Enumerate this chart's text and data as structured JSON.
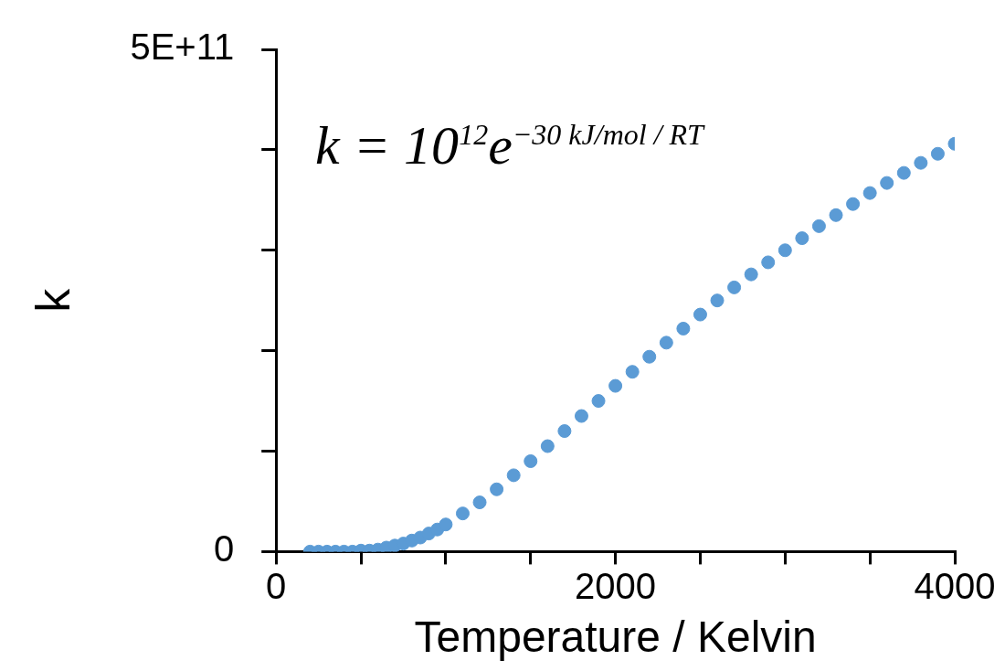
{
  "chart_data": {
    "type": "scatter",
    "xlabel": "Temperature / Kelvin",
    "ylabel": "k",
    "xlim": [
      0,
      4000
    ],
    "ylim": [
      0,
      500000000000.0
    ],
    "xticks": [
      0,
      {
        "value": 500,
        "label": null
      },
      {
        "value": 1000,
        "label": null
      },
      {
        "value": 1500,
        "label": null
      },
      2000,
      {
        "value": 2500,
        "label": null
      },
      {
        "value": 3000,
        "label": null
      },
      {
        "value": 3500,
        "label": null
      },
      4000
    ],
    "yticks": [
      0,
      {
        "value": 100000000000.0,
        "label": null
      },
      {
        "value": 200000000000.0,
        "label": null
      },
      {
        "value": 300000000000.0,
        "label": null
      },
      {
        "value": 400000000000.0,
        "label": null
      },
      {
        "value": 500000000000.0,
        "label": "5E+11"
      }
    ],
    "grid": false,
    "legend": false,
    "marker": "circle",
    "annotations": [
      "k = 10$^{12}$e$^{−30 kJ/mol / RT}$"
    ],
    "series": [
      {
        "color": "#5b9bd5",
        "x": [
          200,
          250,
          300,
          350,
          400,
          450,
          500,
          550,
          600,
          650,
          700,
          750,
          800,
          850,
          900,
          950,
          1000,
          1100,
          1200,
          1300,
          1400,
          1500,
          1600,
          1700,
          1800,
          1900,
          2000,
          2100,
          2200,
          2300,
          2400,
          2500,
          2600,
          2700,
          2800,
          2900,
          3000,
          3100,
          3200,
          3300,
          3400,
          3500,
          3600,
          3700,
          3800,
          3900,
          4000
        ],
        "values": [
          0,
          0,
          0,
          0,
          0,
          0,
          1000000000.0,
          1000000000.0,
          2000000000.0,
          4000000000.0,
          6000000000.0,
          8000000000.0,
          11000000000.0,
          14000000000.0,
          18000000000.0,
          22000000000.0,
          27000000000.0,
          38000000000.0,
          49000000000.0,
          62000000000.0,
          76000000000.0,
          90000000000.0,
          105000000000.0,
          120000000000.0,
          135000000000.0,
          150000000000.0,
          165000000000.0,
          179000000000.0,
          194000000000.0,
          208000000000.0,
          222000000000.0,
          236000000000.0,
          250000000000.0,
          263000000000.0,
          276000000000.0,
          288000000000.0,
          300000000000.0,
          312000000000.0,
          324000000000.0,
          335000000000.0,
          346000000000.0,
          357000000000.0,
          367000000000.0,
          377000000000.0,
          387000000000.0,
          396000000000.0,
          406000000000.0
        ]
      }
    ]
  }
}
